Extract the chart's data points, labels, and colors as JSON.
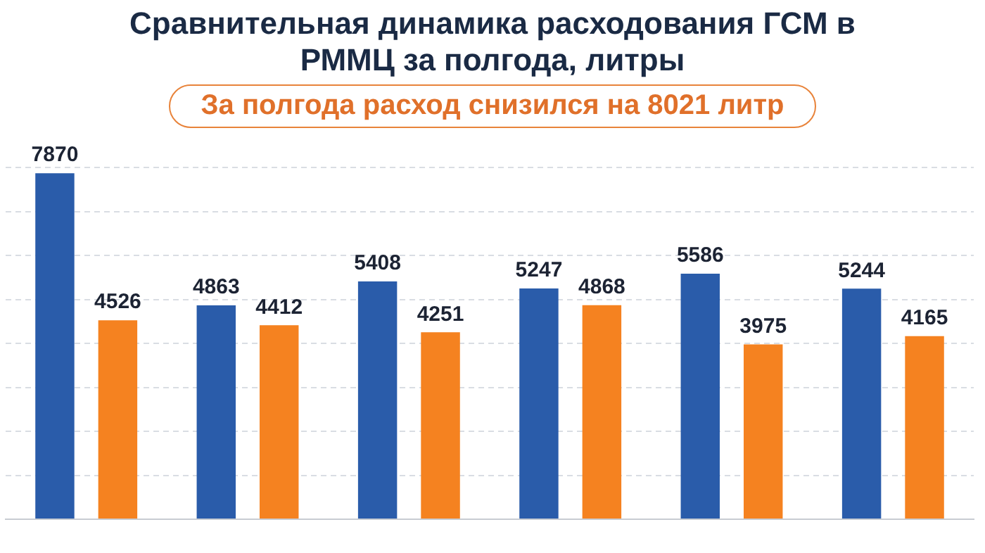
{
  "chart_data": {
    "type": "bar",
    "title": "Сравнительная динамика расходования ГСМ в РММЦ за полгода, литры",
    "subtitle": "За полгода расход снизился на 8021 литр",
    "categories": [
      null,
      null,
      null,
      null,
      null,
      null
    ],
    "series": [
      {
        "color": "#2a5caa",
        "values": [
          7870,
          4863,
          5408,
          5247,
          5586,
          5244
        ]
      },
      {
        "color": "#f58220",
        "values": [
          4526,
          4412,
          4251,
          4868,
          3975,
          4165
        ]
      }
    ],
    "grid": "y",
    "tick_labels": false,
    "data_labels": true
  }
}
